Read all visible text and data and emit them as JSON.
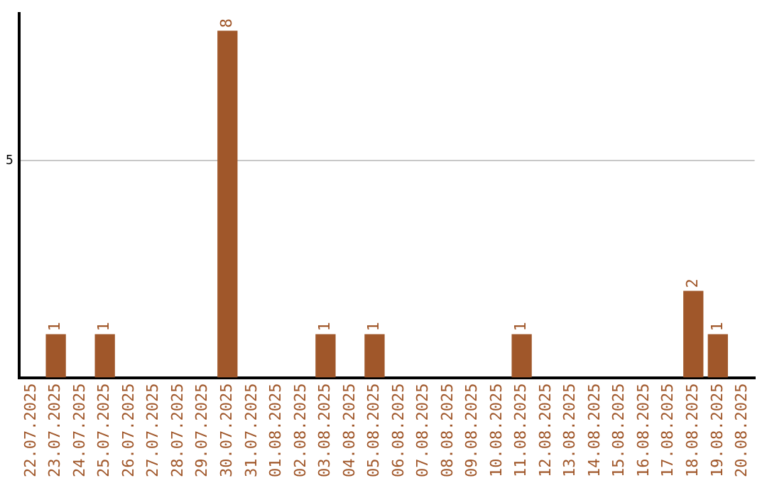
{
  "chart_data": {
    "type": "bar",
    "categories": [
      "22.07.2025",
      "23.07.2025",
      "24.07.2025",
      "25.07.2025",
      "26.07.2025",
      "27.07.2025",
      "28.07.2025",
      "29.07.2025",
      "30.07.2025",
      "31.07.2025",
      "01.08.2025",
      "02.08.2025",
      "03.08.2025",
      "04.08.2025",
      "05.08.2025",
      "06.08.2025",
      "07.08.2025",
      "08.08.2025",
      "09.08.2025",
      "10.08.2025",
      "11.08.2025",
      "12.08.2025",
      "13.08.2025",
      "14.08.2025",
      "15.08.2025",
      "16.08.2025",
      "17.08.2025",
      "18.08.2025",
      "19.08.2025",
      "20.08.2025"
    ],
    "values": [
      0,
      1,
      0,
      1,
      0,
      0,
      0,
      0,
      8,
      0,
      0,
      0,
      1,
      0,
      1,
      0,
      0,
      0,
      0,
      0,
      1,
      0,
      0,
      0,
      0,
      0,
      0,
      2,
      1,
      0
    ],
    "value_labels": [
      null,
      "1",
      null,
      "1",
      null,
      null,
      null,
      null,
      "8",
      null,
      null,
      null,
      "1",
      null,
      "1",
      null,
      null,
      null,
      null,
      null,
      "1",
      null,
      null,
      null,
      null,
      null,
      null,
      "2",
      "1",
      null
    ],
    "color": "#a0572a",
    "ylim": [
      0,
      8.4
    ],
    "yticks": [
      5
    ],
    "grid": "y",
    "legend": false
  }
}
